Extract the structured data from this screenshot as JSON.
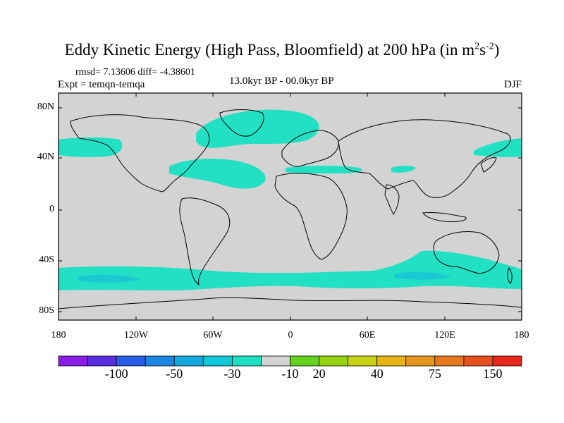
{
  "header": {
    "title": "Eddy Kinetic Energy (High Pass, Bloomfield) at 200 hPa (in m",
    "title_sup1": "2",
    "title_mid": "s",
    "title_sup2": "-2",
    "title_end": ")",
    "stats": "rmsd= 7.13606 diff= -4.38601",
    "expt": "Expt = temqn-temqa",
    "period": "13.0kyr BP - 00.0kyr BP",
    "season": "DJF"
  },
  "map": {
    "lat_labels": [
      "80N",
      "40N",
      "0",
      "40S",
      "80S"
    ],
    "lon_labels": [
      "180",
      "120W",
      "60W",
      "0",
      "60E",
      "120E",
      "180"
    ],
    "background_color": "#d3d3d3",
    "anomaly_color": "#22e0c4",
    "anomaly_dark_color": "#19c8d2"
  },
  "colorbar": {
    "colors": [
      "#8a1ee6",
      "#5a2ee0",
      "#2a5ee8",
      "#1a86e0",
      "#14a8dc",
      "#12c8d8",
      "#1ee0c0",
      "#d3d3d3",
      "#64d21e",
      "#96d214",
      "#c8d214",
      "#e6b414",
      "#e6961e",
      "#e6781e",
      "#e6501e",
      "#e6281e"
    ],
    "labels": [
      "-100",
      "-50",
      "-30",
      "-10",
      "20",
      "40",
      "75",
      "150"
    ]
  }
}
